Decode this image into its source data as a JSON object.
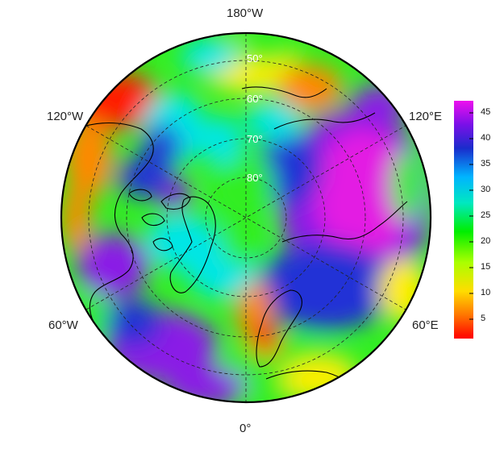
{
  "map": {
    "projection": "north-polar-stereographic",
    "longitude_labels": {
      "top": "180°W",
      "bottom": "0°",
      "upper_left": "120°W",
      "lower_left": "60°W",
      "upper_right": "120°E",
      "lower_right": "60°E"
    },
    "latitude_labels": [
      "50°",
      "60°",
      "70°",
      "80°"
    ],
    "colorbar": {
      "min": 1,
      "max": 47,
      "ticks": [
        "5",
        "10",
        "15",
        "20",
        "25",
        "30",
        "35",
        "40",
        "45"
      ],
      "colors": [
        "#ff0000",
        "#ff7700",
        "#ffdd00",
        "#aaff00",
        "#00ee00",
        "#00e8c0",
        "#00b4ff",
        "#1a2ccc",
        "#7a10e8",
        "#ee10ee"
      ]
    },
    "field_palette_note_colors": {
      "red": "#ff1a00",
      "orange": "#ff8800",
      "yellow": "#ffee00",
      "green": "#33ee22",
      "cyan": "#00e6e6",
      "blue": "#2233d6",
      "purple": "#8a1ee6",
      "magenta": "#e31ae3"
    }
  }
}
